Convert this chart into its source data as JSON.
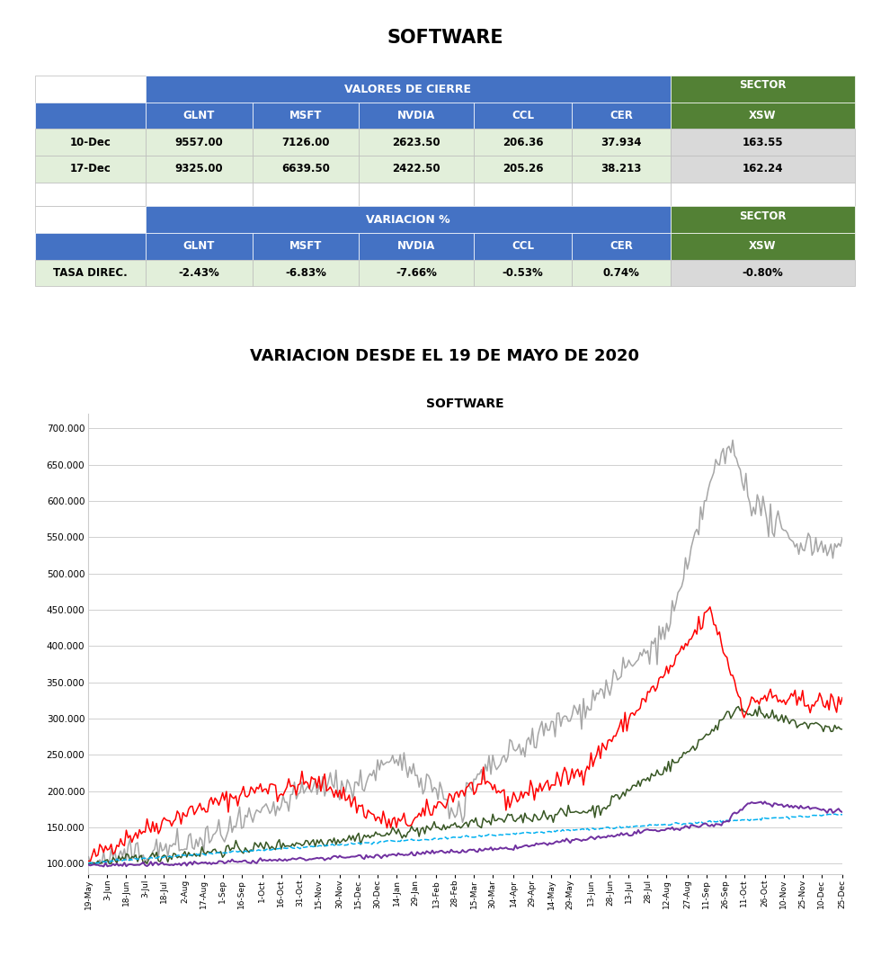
{
  "title_top": "SOFTWARE",
  "title_chart2": "VARIACION DESDE EL 19 DE MAYO DE 2020",
  "chart_inner_title": "SOFTWARE",
  "table1": {
    "header1": "VALORES DE CIERRE",
    "rows": [
      {
        "label": "10-Dec",
        "vals": [
          "9557.00",
          "7126.00",
          "2623.50",
          "206.36",
          "37.934",
          "163.55"
        ]
      },
      {
        "label": "17-Dec",
        "vals": [
          "9325.00",
          "6639.50",
          "2422.50",
          "205.26",
          "38.213",
          "162.24"
        ]
      }
    ]
  },
  "table2": {
    "header1": "VARIACION %",
    "rows": [
      {
        "label": "TASA DIREC.",
        "vals": [
          "-2.43%",
          "-6.83%",
          "-7.66%",
          "-0.53%",
          "0.74%",
          "-0.80%"
        ]
      }
    ]
  },
  "blue_header_color": "#4472C4",
  "green_header_color": "#538135",
  "light_green_row_color": "#E2EFDA",
  "light_grey_row_color": "#D9D9D9",
  "col_names": [
    "GLNT",
    "MSFT",
    "NVDIA",
    "CCL",
    "CER"
  ],
  "x_labels": [
    "19-May",
    "3-Jun",
    "18-Jun",
    "3-Jul",
    "18-Jul",
    "2-Aug",
    "17-Aug",
    "1-Sep",
    "16-Sep",
    "1-Oct",
    "16-Oct",
    "31-Oct",
    "15-Nov",
    "30-Nov",
    "15-Dec",
    "30-Dec",
    "14-Jan",
    "29-Jan",
    "13-Feb",
    "28-Feb",
    "15-Mar",
    "30-Mar",
    "14-Apr",
    "29-Apr",
    "14-May",
    "29-May",
    "13-Jun",
    "28-Jun",
    "13-Jul",
    "28-Jul",
    "12-Aug",
    "27-Aug",
    "11-Sep",
    "26-Sep",
    "11-Oct",
    "26-Oct",
    "10-Nov",
    "25-Nov",
    "10-Dec",
    "25-Dec"
  ],
  "series_colors": {
    "GLNT": "#FF0000",
    "MSFT": "#375623",
    "NVDIA": "#A6A6A6",
    "CCL": "#7030A0",
    "CER": "#00B0F0"
  },
  "ylim": [
    85000,
    720000
  ],
  "yticks": [
    100000,
    150000,
    200000,
    250000,
    300000,
    350000,
    400000,
    450000,
    500000,
    550000,
    600000,
    650000,
    700000
  ],
  "grid_line_color": "#D0D0D0"
}
